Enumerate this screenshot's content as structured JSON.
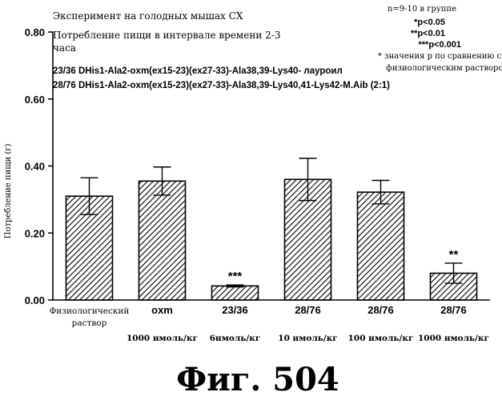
{
  "chart_data": {
    "type": "bar",
    "header_lines": [
      "Эксперимент на голодных мышах СХ",
      "Потребление пищи в интервале времени 2-3",
      "часа"
    ],
    "legend": [
      "23/36 DHis1-Ala2-oxm(ex15-23)(ex27-33)-Ala38,39-Lys40- лауроил",
      "28/76 DHis1-Ala2-oxm(ex15-23)(ex27-33)-Ala38,39-Lys40,41-Lys42-M.Aib (2:1)"
    ],
    "notes": [
      "n=9-10 в группе",
      "*p<0.05",
      "**p<0.01",
      "***p<0.001",
      "* значения p по сравнению с",
      "физиологическим раствором"
    ],
    "ylabel": "Потребление пищи (г)",
    "ylim": [
      0,
      0.8
    ],
    "yticks": [
      "0.00",
      "0.20",
      "0.40",
      "0.60",
      "0.80"
    ],
    "categories": [
      "Физиологический раствор",
      "oxm",
      "23/36",
      "28/76",
      "28/76",
      "28/76"
    ],
    "category_lines": [
      [
        "Физиологический",
        "раствор"
      ],
      [
        "oxm"
      ],
      [
        "23/36"
      ],
      [
        "28/76"
      ],
      [
        "28/76"
      ],
      [
        "28/76"
      ]
    ],
    "doses": [
      "",
      "1000 нмоль/кг",
      "6нмоль/кг",
      "10 нмоль/кг",
      "100 нмоль/кг",
      "1000 нмоль/кг"
    ],
    "values": [
      0.31,
      0.355,
      0.042,
      0.36,
      0.322,
      0.08
    ],
    "errors": [
      0.055,
      0.042,
      0.003,
      0.063,
      0.035,
      0.03
    ],
    "significance": [
      "",
      "",
      "***",
      "",
      "",
      "**"
    ],
    "grid": false
  },
  "figure_caption": "Фиг. 504"
}
